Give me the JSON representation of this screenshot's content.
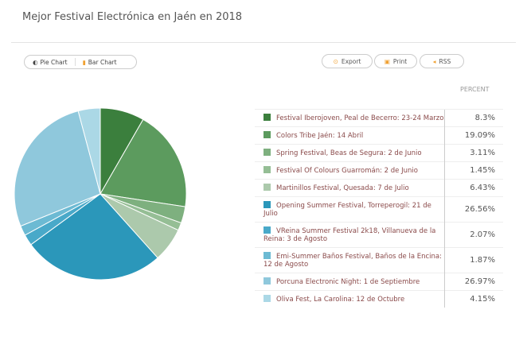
{
  "title": "Mejor Festival Electrónica en Jaén en 2018",
  "toggle": {
    "pie": "Pie Chart",
    "bar": "Bar Chart"
  },
  "buttons": {
    "export": "Export",
    "print": "Print",
    "rss": "RSS"
  },
  "chart_data": {
    "type": "pie",
    "column_header": "PERCENT",
    "categories": [
      "Festival Iberojoven, Peal de Becerro: 23-24 Marzo",
      "Colors Tribe Jaén: 14 Abril",
      "Spring Festival, Beas de Segura: 2 de Junio",
      "Festival Of Colours Guarromán: 2 de Junio",
      "Martinillos Festival, Quesada: 7 de Julio",
      "Opening Summer Festival, Torreperogil: 21 de Julio",
      "VReina Summer Festival 2k18, Villanueva de la Reina: 3 de Agosto",
      "Emi-Summer Baños Festival, Baños de la Encina: 12 de Agosto",
      "Porcuna Electronic Night: 1 de Septiembre",
      "Oliva Fest, La Carolina: 12 de Octubre"
    ],
    "values": [
      8.3,
      19.09,
      3.11,
      1.45,
      6.43,
      26.56,
      2.07,
      1.87,
      26.97,
      4.15
    ],
    "labels": [
      "8.3%",
      "19.09%",
      "3.11%",
      "1.45%",
      "6.43%",
      "26.56%",
      "2.07%",
      "1.87%",
      "26.97%",
      "4.15%"
    ],
    "colors": [
      "#3b7f3d",
      "#5c9b5e",
      "#7eb07f",
      "#95be95",
      "#acc9ac",
      "#2b97ba",
      "#49a9c9",
      "#6cbad3",
      "#8fc8dc",
      "#abd8e6"
    ]
  }
}
